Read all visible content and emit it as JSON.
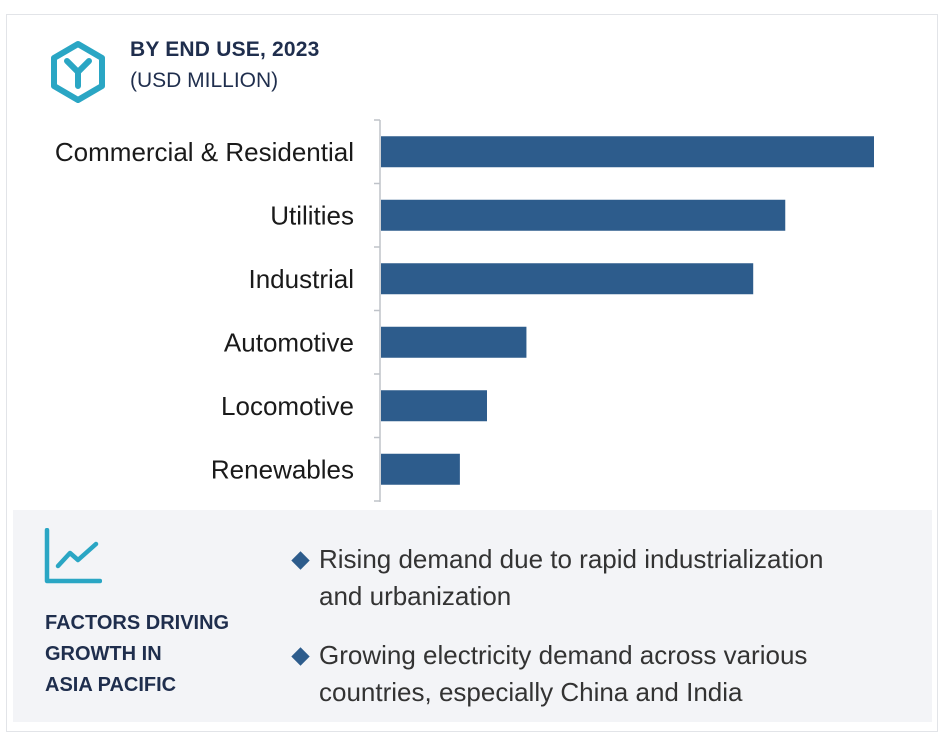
{
  "header": {
    "icon": "hexagon-y-icon",
    "title": "BY END USE, 2023",
    "subtitle": "(USD MILLION)"
  },
  "colors": {
    "bar": "#2d5c8c",
    "icon_teal": "#2aa6c4",
    "heading": "#1f2e4d",
    "footer_bg": "#f3f4f7"
  },
  "chart_data": {
    "type": "bar",
    "orientation": "horizontal",
    "title": "BY END USE, 2023",
    "subtitle": "(USD MILLION)",
    "categories": [
      "Commercial & Residential",
      "Utilities",
      "Industrial",
      "Automotive",
      "Locomotive",
      "Renewables"
    ],
    "values": [
      100,
      82,
      75.5,
      29.5,
      21.5,
      16
    ],
    "value_axis_labels": false,
    "grid": false,
    "legend": "none"
  },
  "footer": {
    "icon": "line-chart-icon",
    "heading": [
      "FACTORS DRIVING",
      "GROWTH IN",
      "ASIA PACIFIC"
    ],
    "bullets": [
      {
        "lines": [
          "Rising demand due to rapid industrialization",
          "and urbanization"
        ]
      },
      {
        "lines": [
          "Growing electricity demand across various",
          "countries, especially China and India"
        ]
      }
    ]
  }
}
